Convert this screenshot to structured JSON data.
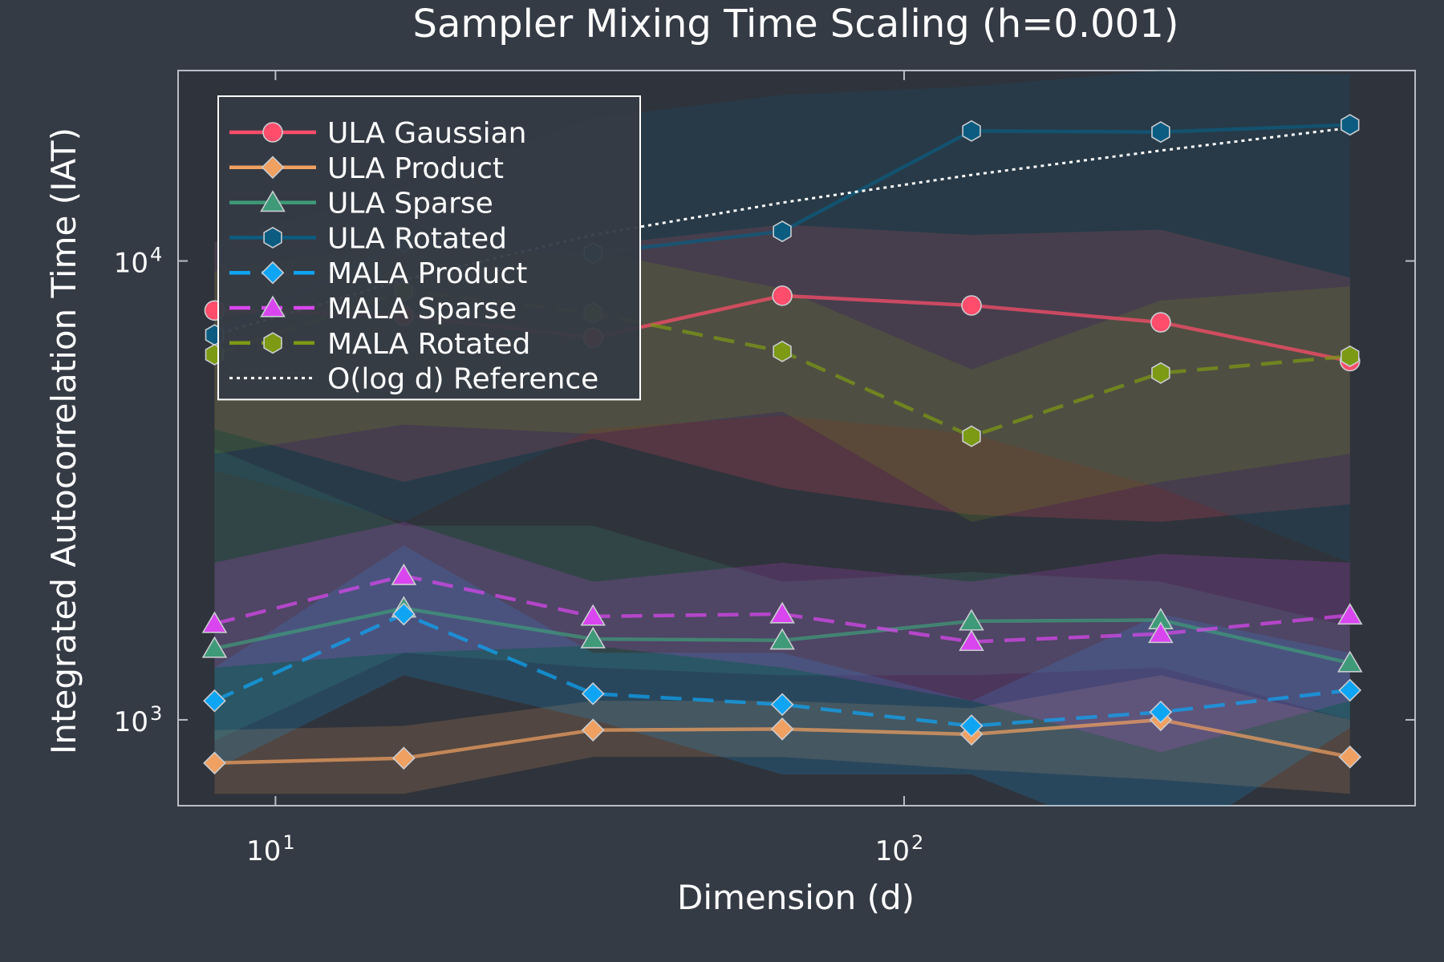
{
  "chart_data": {
    "type": "line",
    "title": "Sampler Mixing Time Scaling (h=0.001)",
    "xlabel": "Dimension (d)",
    "ylabel": "Integrated Autocorrelation Time (IAT)",
    "x_scale": "log",
    "y_scale": "log",
    "xlim": [
      7.0,
      650
    ],
    "ylim": [
      650,
      26000
    ],
    "x_ticks": [
      {
        "value": 10,
        "base": "10",
        "exp": "1"
      },
      {
        "value": 100,
        "base": "10",
        "exp": "2"
      }
    ],
    "y_ticks": [
      {
        "value": 1000,
        "base": "10",
        "exp": "3"
      },
      {
        "value": 10000,
        "base": "10",
        "exp": "4"
      }
    ],
    "grid": false,
    "legend_position": "top-left",
    "x": [
      8,
      16,
      32,
      64,
      128,
      256,
      512
    ],
    "series": [
      {
        "name": "ULA Gaussian",
        "color": "#ff4d6b",
        "dash": "solid",
        "marker": "circle",
        "values": [
          7800,
          7600,
          6800,
          8400,
          8000,
          7350,
          6050
        ],
        "band_low": [
          4300,
          3300,
          4100,
          3200,
          2800,
          2700,
          2950
        ],
        "band_high": [
          11000,
          12000,
          10800,
          12000,
          11400,
          11700,
          9200
        ]
      },
      {
        "name": "ULA Product",
        "color": "#f0a060",
        "dash": "solid",
        "marker": "diamond",
        "values": [
          805,
          825,
          950,
          955,
          930,
          1000,
          830
        ],
        "band_low": [
          690,
          690,
          830,
          830,
          780,
          740,
          690
        ],
        "band_high": [
          950,
          970,
          1100,
          1100,
          1060,
          1250,
          1000
        ]
      },
      {
        "name": "ULA Sparse",
        "color": "#3e9a78",
        "dash": "solid",
        "marker": "triangle",
        "values": [
          1430,
          1750,
          1500,
          1490,
          1640,
          1650,
          1330
        ],
        "band_low": [
          900,
          1400,
          1300,
          1250,
          1250,
          1300,
          1000
        ],
        "band_high": [
          3900,
          2650,
          2650,
          2000,
          2100,
          2000,
          1600
        ]
      },
      {
        "name": "ULA Rotated",
        "color": "#0b5c80",
        "dash": "solid",
        "marker": "hexagon",
        "values": [
          6900,
          11000,
          10400,
          11600,
          19200,
          19100,
          19800
        ],
        "band_low": [
          3500,
          2700,
          4300,
          4600,
          4200,
          3200,
          2200
        ],
        "band_high": [
          11000,
          14500,
          20500,
          23000,
          24000,
          26000,
          25500
        ]
      },
      {
        "name": "MALA Product",
        "color": "#0ea5f5",
        "dash": "dash",
        "marker": "diamond",
        "values": [
          1100,
          1700,
          1140,
          1080,
          970,
          1040,
          1160
        ],
        "band_low": [
          780,
          1250,
          1000,
          760,
          760,
          520,
          960
        ],
        "band_high": [
          1300,
          2400,
          1400,
          1400,
          1100,
          1700,
          1400
        ]
      },
      {
        "name": "MALA Sparse",
        "color": "#d946ef",
        "dash": "dash",
        "marker": "triangle",
        "values": [
          1620,
          2060,
          1680,
          1700,
          1480,
          1540,
          1690
        ],
        "band_low": [
          1300,
          1400,
          1450,
          1300,
          1100,
          850,
          1100
        ],
        "band_high": [
          2200,
          2700,
          2000,
          2200,
          2000,
          2300,
          2200
        ]
      },
      {
        "name": "MALA Rotated",
        "color": "#7c9a13",
        "dash": "dash",
        "marker": "hexagon",
        "values": [
          6250,
          8600,
          7700,
          6350,
          4150,
          5700,
          6200
        ],
        "band_low": [
          3800,
          4400,
          4200,
          4700,
          2700,
          3300,
          3800
        ],
        "band_high": [
          9500,
          11000,
          10500,
          8700,
          5800,
          8200,
          8800
        ]
      },
      {
        "name": "O(log d) Reference",
        "color": "#ffffff",
        "dash": "dot",
        "marker": "none",
        "values": [
          6900,
          9100,
          11400,
          13400,
          15400,
          17400,
          19500
        ]
      }
    ]
  }
}
